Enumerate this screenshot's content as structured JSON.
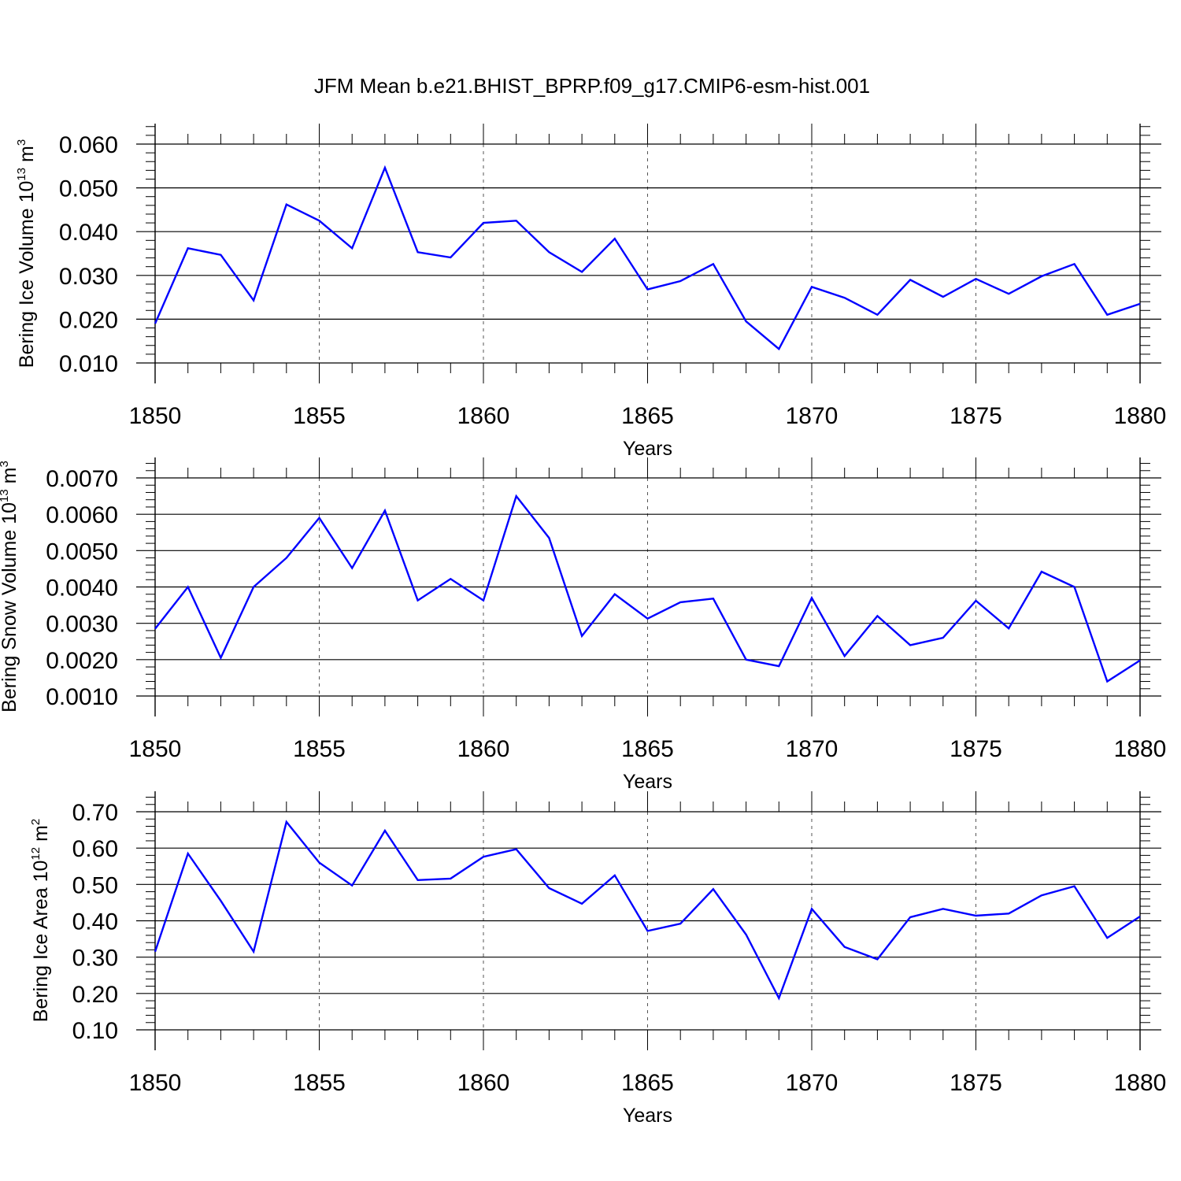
{
  "title": "JFM Mean b.e21.BHIST_BPRP.f09_g17.CMIP6-esm-hist.001",
  "colors": {
    "line": "#0000ff",
    "axis": "#000000",
    "grid": "#555555"
  },
  "chart_data": [
    {
      "type": "line",
      "xlabel": "Years",
      "ylabel": {
        "text": "Bering Ice Volume 10",
        "exp": "13",
        "unit": " m",
        "unit_exp": "3"
      },
      "xlim": [
        1850,
        1880
      ],
      "ylim": [
        0.01,
        0.06
      ],
      "yticks": [
        "0.010",
        "0.020",
        "0.030",
        "0.040",
        "0.050",
        "0.060"
      ],
      "xticks": [
        "1850",
        "1855",
        "1860",
        "1865",
        "1870",
        "1875",
        "1880"
      ],
      "grid": "vertical dashed at major x ticks",
      "x": [
        1850,
        1851,
        1852,
        1853,
        1854,
        1855,
        1856,
        1857,
        1858,
        1859,
        1860,
        1861,
        1862,
        1863,
        1864,
        1865,
        1866,
        1867,
        1868,
        1869,
        1870,
        1871,
        1872,
        1873,
        1874,
        1875,
        1876,
        1877,
        1878,
        1879,
        1880
      ],
      "values": [
        0.019,
        0.0362,
        0.0347,
        0.0243,
        0.0462,
        0.0425,
        0.0362,
        0.0546,
        0.0353,
        0.0341,
        0.042,
        0.0425,
        0.0353,
        0.0308,
        0.0384,
        0.0268,
        0.0287,
        0.0326,
        0.0195,
        0.0132,
        0.0274,
        0.0249,
        0.021,
        0.029,
        0.0251,
        0.0292,
        0.0258,
        0.0298,
        0.0326,
        0.021,
        0.0235
      ]
    },
    {
      "type": "line",
      "xlabel": "Years",
      "ylabel": {
        "text": "Bering Snow Volume 10",
        "exp": "13",
        "unit": " m",
        "unit_exp": "3"
      },
      "xlim": [
        1850,
        1880
      ],
      "ylim": [
        0.001,
        0.007
      ],
      "yticks": [
        "0.0010",
        "0.0020",
        "0.0030",
        "0.0040",
        "0.0050",
        "0.0060",
        "0.0070"
      ],
      "xticks": [
        "1850",
        "1855",
        "1860",
        "1865",
        "1870",
        "1875",
        "1880"
      ],
      "grid": "vertical dashed at major x ticks",
      "x": [
        1850,
        1851,
        1852,
        1853,
        1854,
        1855,
        1856,
        1857,
        1858,
        1859,
        1860,
        1861,
        1862,
        1863,
        1864,
        1865,
        1866,
        1867,
        1868,
        1869,
        1870,
        1871,
        1872,
        1873,
        1874,
        1875,
        1876,
        1877,
        1878,
        1879,
        1880
      ],
      "values": [
        0.00285,
        0.004,
        0.00205,
        0.004,
        0.0048,
        0.0059,
        0.00452,
        0.0061,
        0.00363,
        0.00422,
        0.00363,
        0.0065,
        0.00535,
        0.00265,
        0.0038,
        0.00313,
        0.00358,
        0.00368,
        0.002,
        0.00182,
        0.0037,
        0.0021,
        0.0032,
        0.0024,
        0.0026,
        0.00362,
        0.00286,
        0.00442,
        0.004,
        0.0014,
        0.00198
      ]
    },
    {
      "type": "line",
      "xlabel": "Years",
      "ylabel": {
        "text": "Bering Ice Area 10",
        "exp": "12",
        "unit": " m",
        "unit_exp": "2"
      },
      "xlim": [
        1850,
        1880
      ],
      "ylim": [
        0.1,
        0.7
      ],
      "yticks": [
        "0.10",
        "0.20",
        "0.30",
        "0.40",
        "0.50",
        "0.60",
        "0.70"
      ],
      "xticks": [
        "1850",
        "1855",
        "1860",
        "1865",
        "1870",
        "1875",
        "1880"
      ],
      "grid": "vertical dashed at major x ticks",
      "x": [
        1850,
        1851,
        1852,
        1853,
        1854,
        1855,
        1856,
        1857,
        1858,
        1859,
        1860,
        1861,
        1862,
        1863,
        1864,
        1865,
        1866,
        1867,
        1868,
        1869,
        1870,
        1871,
        1872,
        1873,
        1874,
        1875,
        1876,
        1877,
        1878,
        1879,
        1880
      ],
      "values": [
        0.315,
        0.585,
        0.455,
        0.315,
        0.672,
        0.56,
        0.497,
        0.648,
        0.512,
        0.516,
        0.576,
        0.597,
        0.49,
        0.447,
        0.525,
        0.372,
        0.392,
        0.487,
        0.362,
        0.187,
        0.433,
        0.328,
        0.294,
        0.41,
        0.433,
        0.414,
        0.42,
        0.47,
        0.495,
        0.353,
        0.412
      ]
    }
  ]
}
